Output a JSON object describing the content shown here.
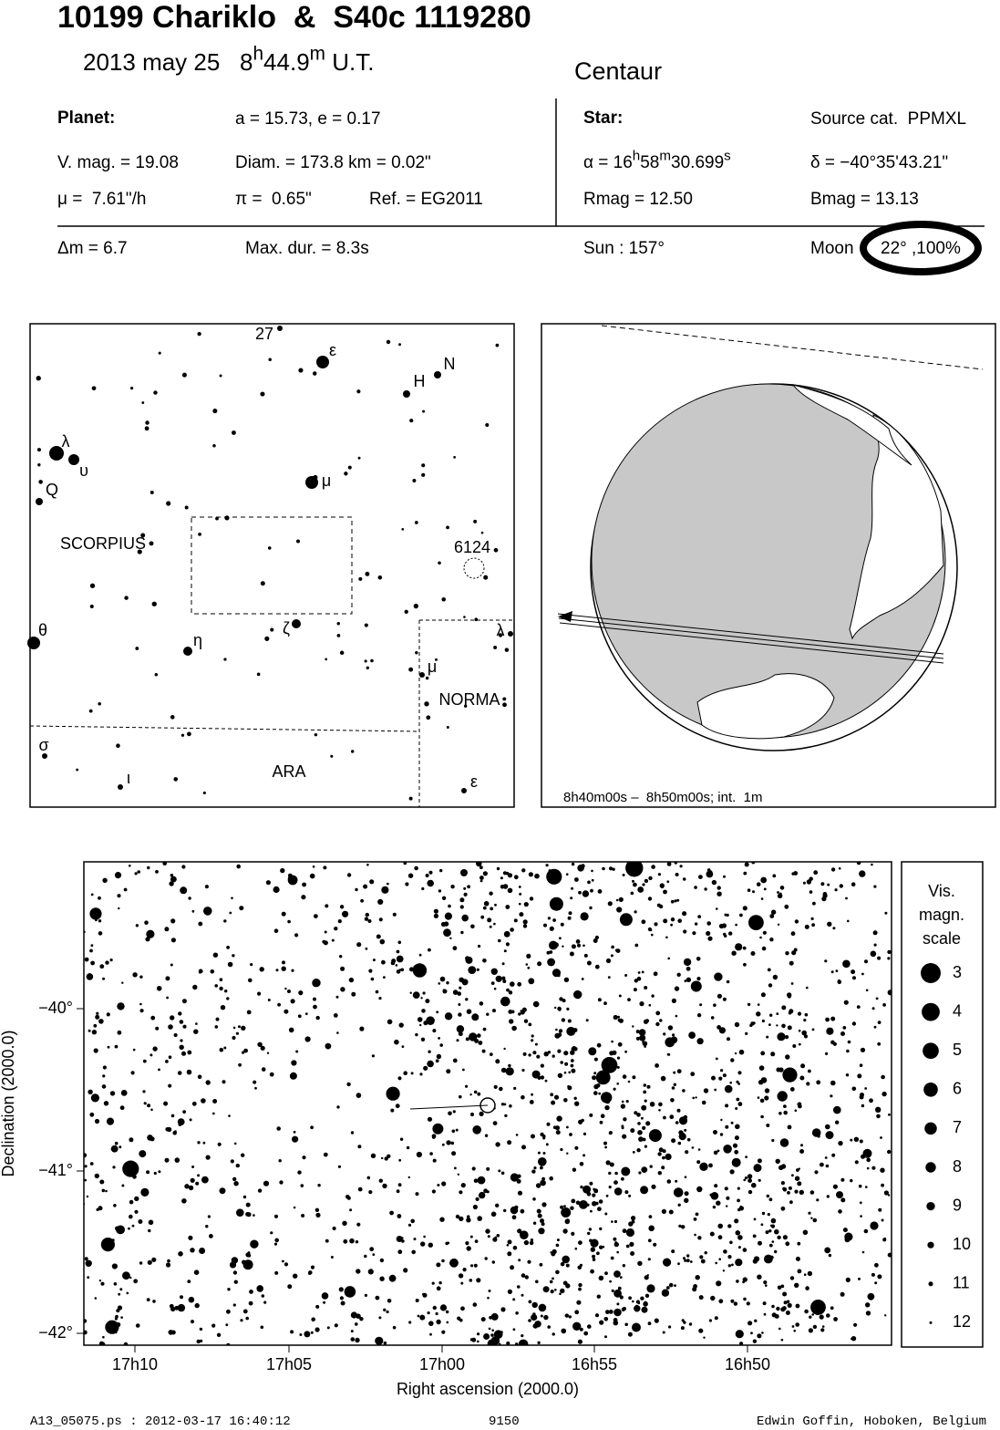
{
  "header": {
    "title": "10199 Chariklo  &  S40c 1119280",
    "date": "2013 may 25",
    "time_hours": "8",
    "time_h": "h",
    "time_minutes": "44.9",
    "time_m": "m",
    "time_scale": "U.T.",
    "object_class": "Centaur"
  },
  "planet": {
    "heading": "Planet:",
    "orbit": "a = 15.73, e = 0.17",
    "vmag": "V. mag. = 19.08",
    "diameter": "Diam. = 173.8 km = 0.02\"",
    "motion": "μ =  7.61\"/h",
    "parallax": "π =  0.65\"",
    "reference": "Ref. = EG2011"
  },
  "star": {
    "heading": "Star:",
    "catalog": "Source cat.  PPMXL",
    "ra_prefix": "α = 16",
    "ra_h": "h",
    "ra_min": "58",
    "ra_m": "m",
    "ra_sec": "30.699",
    "ra_s": "s",
    "dec": "δ = −40°35'43.21\"",
    "rmag": "Rmag = 12.50",
    "bmag": "Bmag = 13.13"
  },
  "event": {
    "delta_mag": "Δm = 6.7",
    "max_duration": "Max. dur. = 8.3s",
    "sun": "Sun : 157°",
    "moon_label": "Moon",
    "moon": "22° ,100%"
  },
  "finder_chart": {
    "labels": [
      "27",
      "ε",
      "H",
      "N",
      "λ",
      "υ",
      "Q",
      "μ",
      "SCORPIUS",
      "6124",
      "θ",
      "η",
      "ζ",
      "λ",
      "μ",
      "NORMA",
      "σ",
      "ι",
      "ARA",
      "ε"
    ]
  },
  "globe": {
    "caption": "8h40m00s –  8h50m00s; int.  1m"
  },
  "star_chart": {
    "x_label": "Right ascension (2000.0)",
    "y_label": "Declination (2000.0)",
    "x_ticks": [
      "17h10",
      "17h05",
      "17h00",
      "16h55",
      "16h50"
    ],
    "y_ticks": [
      "−40°",
      "−41°",
      "−42°"
    ]
  },
  "magnitude_scale": {
    "title": [
      "Vis.",
      "magn.",
      "scale"
    ],
    "magnitudes": [
      3,
      4,
      5,
      6,
      7,
      8,
      9,
      10,
      11,
      12
    ]
  },
  "footer": {
    "file": "A13_05075.ps : 2012-03-17 16:40:12",
    "number": "9150",
    "author": "Edwin Goffin, Hoboken, Belgium"
  }
}
